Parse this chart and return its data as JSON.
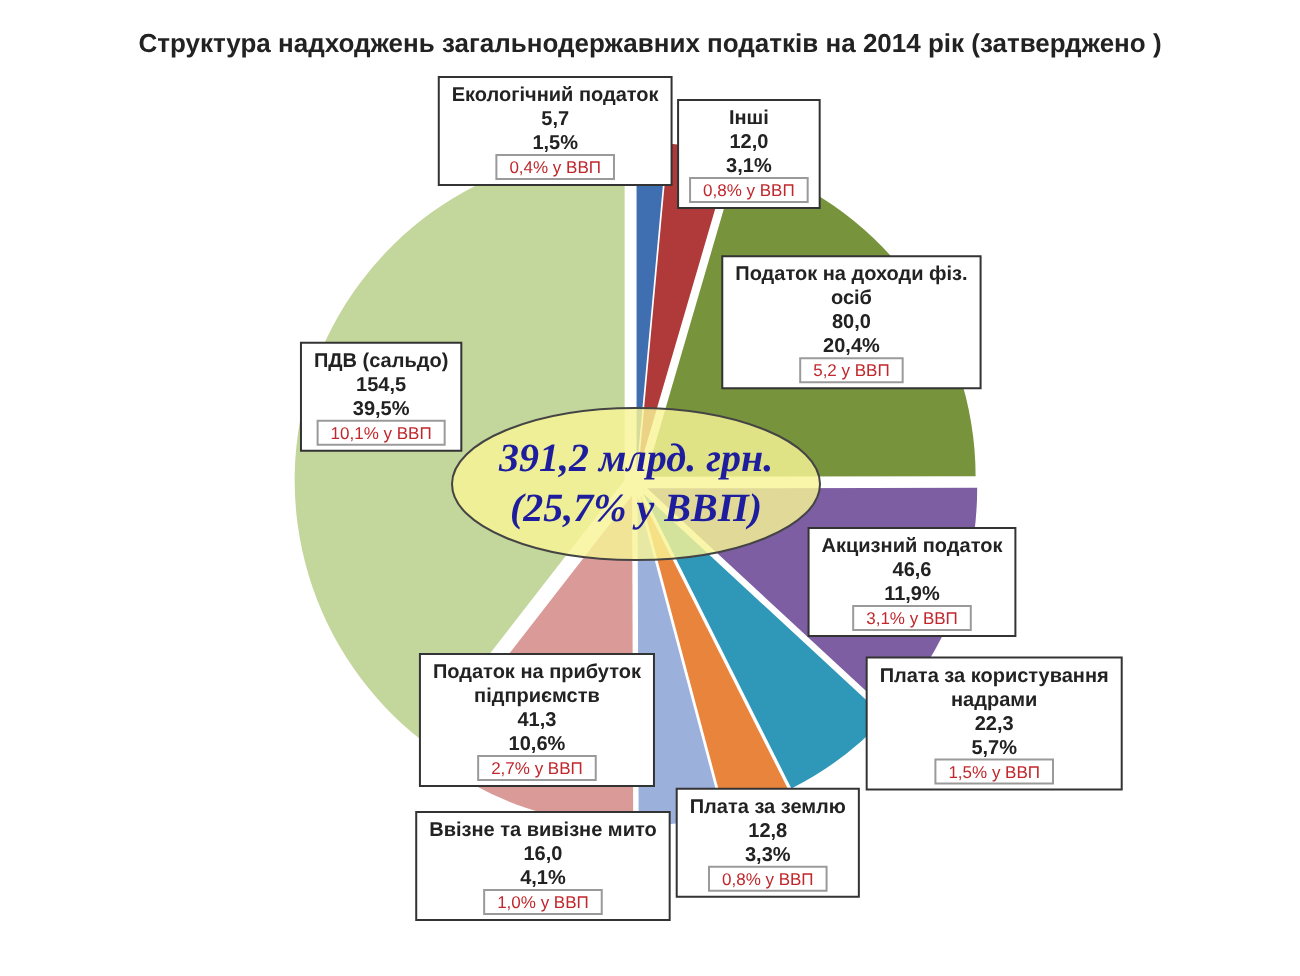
{
  "chart_data": {
    "type": "pie",
    "title": "Структура надходжень загальнодержавних податків на 2014 рік (затверджено )",
    "categories": [
      "Екологічний податок",
      "Інші",
      "Податок на доходи фіз. осіб",
      "Акцизний податок",
      "Плата за користування надрами",
      "Плата за землю",
      "Ввізне та вивізне мито",
      "Податок на прибуток підприємств",
      "ПДВ (сальдо)"
    ],
    "values": [
      5.7,
      12.0,
      80.0,
      46.6,
      22.3,
      12.8,
      16.0,
      41.3,
      154.5
    ],
    "colors": [
      "#3f6fb0",
      "#b0393a",
      "#77933c",
      "#7d5ea3",
      "#2f97b8",
      "#e8843c",
      "#9cb0dc",
      "#d99a98",
      "#c3d69b"
    ],
    "value_labels": [
      "5,7\n1,5%\n0,4% у ВВП",
      "12,0\n3,1%\n0,8% у ВВП",
      "80,0\n20,4%\n5,2 у ВВП",
      "46,6\n11,9%\n3,1% у ВВП",
      "22,3\n5,7%\n1,5% у ВВП",
      "12,8\n3,3%\n0,8% у ВВП",
      "16,0\n4,1%\n1,0% у ВВП",
      "41,3\n10,6%\n2,7% у ВВП",
      "154,5\n39,5%\n10,1% у ВВП"
    ],
    "annotations": [
      "391,2 млрд. грн.\n(25,7% у ВВП)"
    ]
  }
}
